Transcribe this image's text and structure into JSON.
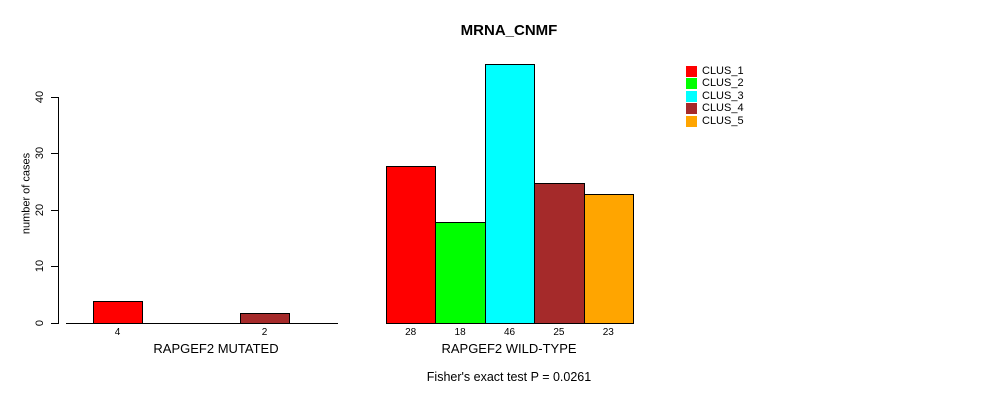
{
  "chart_data": {
    "type": "bar",
    "title": "MRNA_CNMF",
    "ylabel": "number of cases",
    "xlabel": "",
    "yticks": [
      0,
      10,
      20,
      30,
      40
    ],
    "ylim": [
      0,
      46
    ],
    "grid": false,
    "legend_position": "right",
    "categories": [
      "CLUS_1",
      "CLUS_2",
      "CLUS_3",
      "CLUS_4",
      "CLUS_5"
    ],
    "colors": [
      "#ff0000",
      "#00ff00",
      "#00ffff",
      "#a52a2a",
      "#ffa500"
    ],
    "groups": [
      {
        "label": "RAPGEF2 MUTATED",
        "values": [
          4,
          0,
          0,
          2,
          0
        ],
        "bar_labels": [
          "4",
          "",
          "",
          "2",
          ""
        ]
      },
      {
        "label": "RAPGEF2 WILD-TYPE",
        "values": [
          28,
          18,
          46,
          25,
          23
        ],
        "bar_labels": [
          "28",
          "18",
          "46",
          "25",
          "23"
        ]
      }
    ],
    "annotation": "Fisher's exact test P = 0.0261"
  }
}
